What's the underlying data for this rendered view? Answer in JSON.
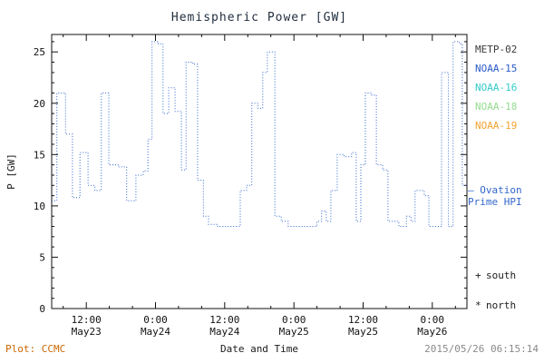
{
  "title": "Hemispheric Power [GW]",
  "y_axis_label": "P [GW]",
  "x_axis_label": "Date and Time",
  "footer": {
    "plot_source": "Plot: CCMC",
    "plot_source_color": "#cc6600",
    "timestamp": "2015/05/26 06:15:14",
    "timestamp_color": "#8a8a8a"
  },
  "legend": {
    "satellites": [
      {
        "label": "METP-02",
        "color": "#3a3a3a"
      },
      {
        "label": "NOAA-15",
        "color": "#2a5bc8"
      },
      {
        "label": "NOAA-16",
        "color": "#33c9c9"
      },
      {
        "label": "NOAA-18",
        "color": "#94dc8e"
      },
      {
        "label": "NOAA-19",
        "color": "#f2a22e"
      }
    ],
    "model": {
      "line1": "– Ovation",
      "line2": "Prime HPI",
      "color": "#3366cc"
    },
    "markers": [
      {
        "symbol": "+",
        "label": "south"
      },
      {
        "symbol": "*",
        "label": "north"
      }
    ]
  },
  "chart_data": {
    "type": "line",
    "step": true,
    "line_style": "dotted",
    "line_color": "#3366cc",
    "title": "Hemispheric Power [GW]",
    "xlabel": "Date and Time",
    "ylabel": "P [GW]",
    "ylim": [
      0,
      26.7
    ],
    "xlim_hours_since_may23_00": [
      6,
      78
    ],
    "grid": false,
    "legend_position": "right",
    "y_ticks": [
      0,
      5,
      10,
      15,
      20,
      25
    ],
    "x_ticks": [
      {
        "hour": 12,
        "time": "12:00",
        "date": "May23"
      },
      {
        "hour": 24,
        "time": "0:00",
        "date": "May24"
      },
      {
        "hour": 36,
        "time": "12:00",
        "date": "May24"
      },
      {
        "hour": 48,
        "time": "0:00",
        "date": "May25"
      },
      {
        "hour": 60,
        "time": "12:00",
        "date": "May25"
      },
      {
        "hour": 72,
        "time": "0:00",
        "date": "May26"
      }
    ],
    "points_hour_gw": [
      [
        6.0,
        10.5
      ],
      [
        6.9,
        21.0
      ],
      [
        8.4,
        17.0
      ],
      [
        9.6,
        10.8
      ],
      [
        10.9,
        15.2
      ],
      [
        12.3,
        12.0
      ],
      [
        13.5,
        11.5
      ],
      [
        14.6,
        21.0
      ],
      [
        15.9,
        14.0
      ],
      [
        17.5,
        13.8
      ],
      [
        19.0,
        10.5
      ],
      [
        20.6,
        13.0
      ],
      [
        21.9,
        13.4
      ],
      [
        22.7,
        16.5
      ],
      [
        23.4,
        26.0
      ],
      [
        24.5,
        25.8
      ],
      [
        25.3,
        19.0
      ],
      [
        26.3,
        21.5
      ],
      [
        27.4,
        19.2
      ],
      [
        28.5,
        13.5
      ],
      [
        29.3,
        24.0
      ],
      [
        30.5,
        23.8
      ],
      [
        31.3,
        12.5
      ],
      [
        32.3,
        9.0
      ],
      [
        33.2,
        8.2
      ],
      [
        34.8,
        8.0
      ],
      [
        37.9,
        8.0
      ],
      [
        38.7,
        11.5
      ],
      [
        39.8,
        12.0
      ],
      [
        40.7,
        20.0
      ],
      [
        41.8,
        19.5
      ],
      [
        42.6,
        23.0
      ],
      [
        43.4,
        25.0
      ],
      [
        44.2,
        25.0
      ],
      [
        44.7,
        9.0
      ],
      [
        45.8,
        8.5
      ],
      [
        47.0,
        8.0
      ],
      [
        51.3,
        8.0
      ],
      [
        52.0,
        8.5
      ],
      [
        52.8,
        9.5
      ],
      [
        53.6,
        8.5
      ],
      [
        54.4,
        11.5
      ],
      [
        55.5,
        15.0
      ],
      [
        56.7,
        14.8
      ],
      [
        58.0,
        15.2
      ],
      [
        58.8,
        8.5
      ],
      [
        59.6,
        14.0
      ],
      [
        60.4,
        21.0
      ],
      [
        61.5,
        20.8
      ],
      [
        62.3,
        14.0
      ],
      [
        63.4,
        13.5
      ],
      [
        64.3,
        8.5
      ],
      [
        66.2,
        8.0
      ],
      [
        67.5,
        9.0
      ],
      [
        68.3,
        8.5
      ],
      [
        69.0,
        11.5
      ],
      [
        70.6,
        11.0
      ],
      [
        71.4,
        8.0
      ],
      [
        72.8,
        8.0
      ],
      [
        73.6,
        23.0
      ],
      [
        74.8,
        8.0
      ],
      [
        75.6,
        26.0
      ],
      [
        76.7,
        25.8
      ],
      [
        77.2,
        12.0
      ],
      [
        78.0,
        12.0
      ]
    ]
  }
}
